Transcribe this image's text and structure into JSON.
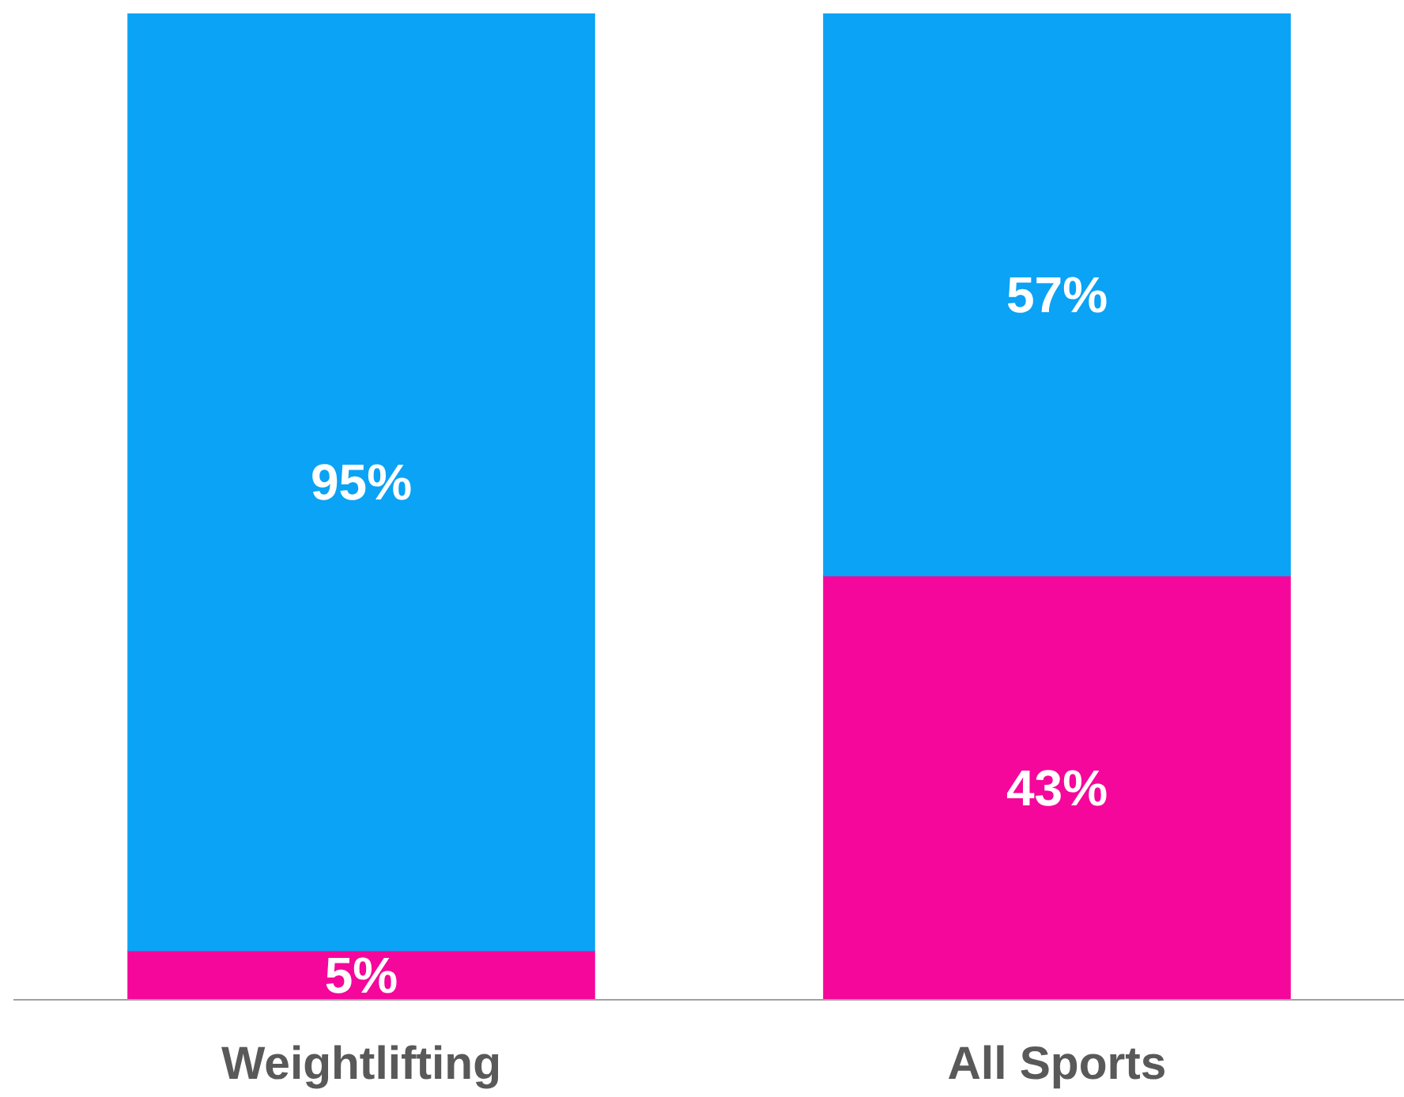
{
  "chart_data": {
    "type": "bar",
    "stacked": true,
    "categories": [
      "Weightlifting",
      "All Sports"
    ],
    "series": [
      {
        "color": "#f5079b",
        "values": [
          5,
          43
        ],
        "value_labels": [
          "5%",
          "43%"
        ]
      },
      {
        "color": "#0aa3f5",
        "values": [
          95,
          57
        ],
        "value_labels": [
          "95%",
          "57%"
        ]
      }
    ],
    "tick_labels": "x",
    "grid": false
  }
}
